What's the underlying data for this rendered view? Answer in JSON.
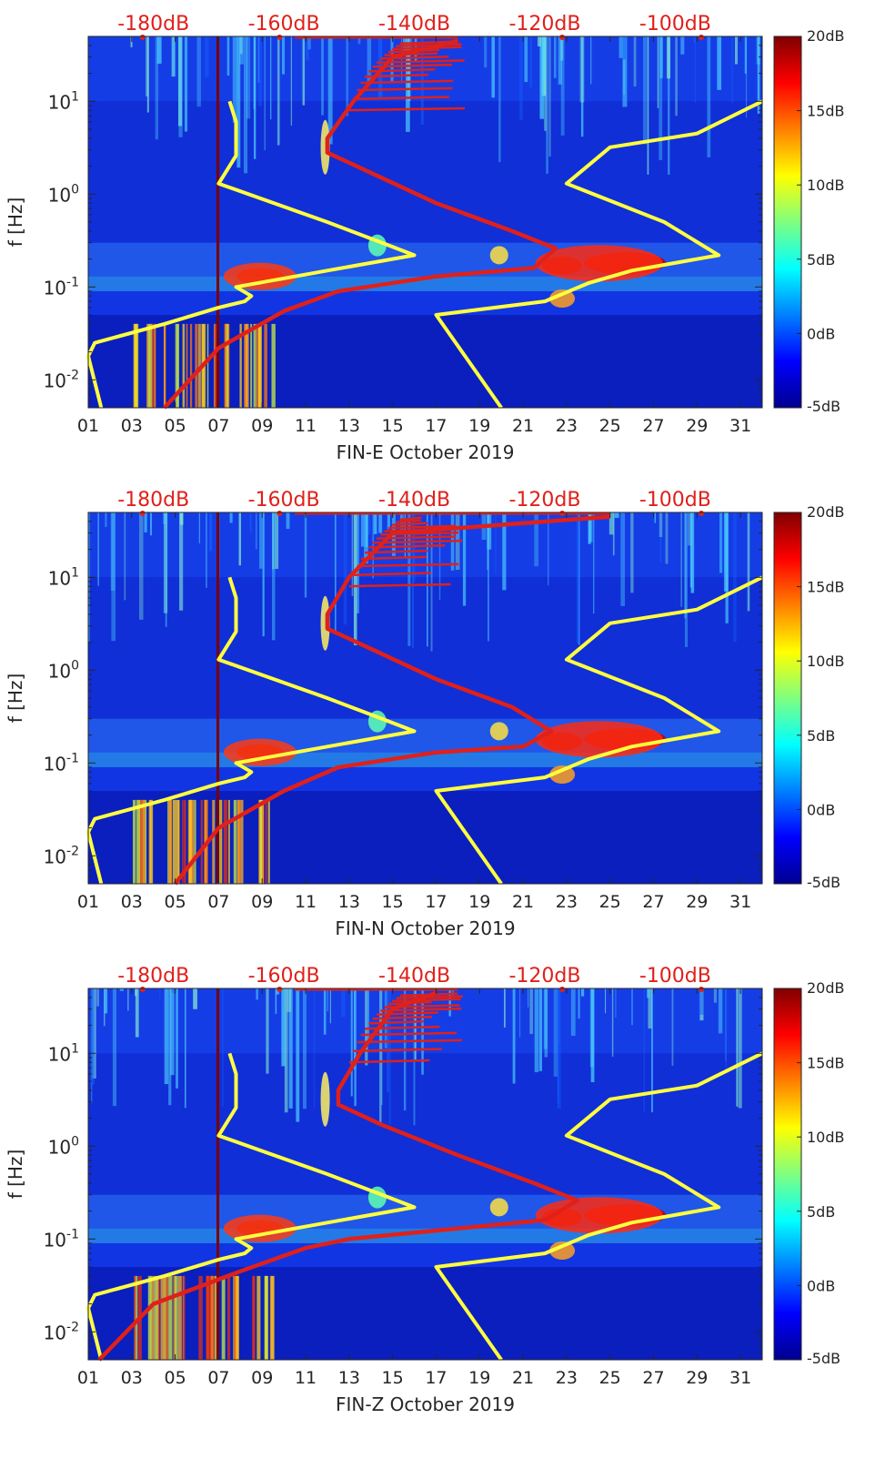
{
  "chart_data": [
    {
      "type": "heatmap",
      "title": "",
      "xlabel": "FIN-E October 2019",
      "ylabel": "f [Hz]",
      "x_ticks": [
        "01",
        "03",
        "05",
        "07",
        "09",
        "11",
        "13",
        "15",
        "17",
        "19",
        "21",
        "23",
        "25",
        "27",
        "29",
        "31"
      ],
      "x_tick_values": [
        1,
        3,
        5,
        7,
        9,
        11,
        13,
        15,
        17,
        19,
        21,
        23,
        25,
        27,
        29,
        31
      ],
      "xlim": [
        1,
        32
      ],
      "y_ticks": [
        "10^-2",
        "10^-1",
        "10^0",
        "10^1"
      ],
      "y_tick_values": [
        0.01,
        0.1,
        1,
        10
      ],
      "ylim": [
        0.005,
        50
      ],
      "yscale": "log",
      "top_axis_labels": [
        "-180dB",
        "-160dB",
        "-140dB",
        "-120dB",
        "-100dB"
      ],
      "top_axis_positions": [
        4,
        10,
        16,
        22,
        28
      ],
      "colorbar": {
        "labels": [
          "20dB",
          "15dB",
          "10dB",
          "5dB",
          "0dB",
          "-5dB"
        ],
        "range": [
          -5,
          20
        ]
      },
      "series": [
        {
          "name": "noise model (yellow)",
          "color": "#ffff40",
          "points": [
            [
              7.5,
              10
            ],
            [
              7.8,
              6
            ],
            [
              7.8,
              2.6
            ],
            [
              7,
              1.3
            ],
            [
              12,
              0.5
            ],
            [
              14.5,
              0.3
            ],
            [
              16,
              0.22
            ],
            [
              12,
              0.15
            ],
            [
              7.8,
              0.1
            ],
            [
              8.5,
              0.08
            ],
            [
              8.2,
              0.07
            ],
            [
              7,
              0.06
            ],
            [
              4.5,
              0.04
            ],
            [
              1.3,
              0.025
            ],
            [
              1,
              0.018
            ],
            [
              1.6,
              0.005
            ]
          ]
        },
        {
          "name": "noise model (yellow) 2",
          "color": "#ffff40",
          "points": [
            [
              32,
              10
            ],
            [
              29,
              4.5
            ],
            [
              25,
              3.2
            ],
            [
              23,
              1.3
            ],
            [
              27.5,
              0.5
            ],
            [
              30,
              0.22
            ],
            [
              26,
              0.15
            ],
            [
              24,
              0.11
            ],
            [
              22,
              0.07
            ],
            [
              17,
              0.05
            ],
            [
              20,
              0.005
            ]
          ]
        },
        {
          "name": "PSD level curve (red)",
          "color": "#e0201a",
          "points": [
            [
              18,
              45
            ],
            [
              15,
              30
            ],
            [
              13.2,
              10
            ],
            [
              12,
              4
            ],
            [
              12,
              2.8
            ],
            [
              14,
              1.7
            ],
            [
              17,
              0.8
            ],
            [
              20.5,
              0.4
            ],
            [
              22.5,
              0.26
            ],
            [
              21.5,
              0.16
            ],
            [
              17,
              0.13
            ],
            [
              12.5,
              0.09
            ],
            [
              10,
              0.055
            ],
            [
              7,
              0.022
            ],
            [
              4.5,
              0.005
            ]
          ]
        }
      ]
    },
    {
      "type": "heatmap",
      "title": "",
      "xlabel": "FIN-N October 2019",
      "ylabel": "f [Hz]",
      "x_ticks": [
        "01",
        "03",
        "05",
        "07",
        "09",
        "11",
        "13",
        "15",
        "17",
        "19",
        "21",
        "23",
        "25",
        "27",
        "29",
        "31"
      ],
      "x_tick_values": [
        1,
        3,
        5,
        7,
        9,
        11,
        13,
        15,
        17,
        19,
        21,
        23,
        25,
        27,
        29,
        31
      ],
      "xlim": [
        1,
        32
      ],
      "y_ticks": [
        "10^-2",
        "10^-1",
        "10^0",
        "10^1"
      ],
      "y_tick_values": [
        0.01,
        0.1,
        1,
        10
      ],
      "ylim": [
        0.005,
        50
      ],
      "yscale": "log",
      "top_axis_labels": [
        "-180dB",
        "-160dB",
        "-140dB",
        "-120dB",
        "-100dB"
      ],
      "top_axis_positions": [
        4,
        10,
        16,
        22,
        28
      ],
      "colorbar": {
        "labels": [
          "20dB",
          "15dB",
          "10dB",
          "5dB",
          "0dB",
          "-5dB"
        ],
        "range": [
          -5,
          20
        ]
      },
      "series": [
        {
          "name": "noise model (yellow)",
          "color": "#ffff40",
          "points": [
            [
              7.5,
              10
            ],
            [
              7.8,
              6
            ],
            [
              7.8,
              2.6
            ],
            [
              7,
              1.3
            ],
            [
              12,
              0.5
            ],
            [
              14.5,
              0.3
            ],
            [
              16,
              0.22
            ],
            [
              12,
              0.15
            ],
            [
              7.8,
              0.1
            ],
            [
              8.5,
              0.08
            ],
            [
              8.2,
              0.07
            ],
            [
              7,
              0.06
            ],
            [
              4.5,
              0.04
            ],
            [
              1.3,
              0.025
            ],
            [
              1,
              0.018
            ],
            [
              1.6,
              0.005
            ]
          ]
        },
        {
          "name": "noise model (yellow) 2",
          "color": "#ffff40",
          "points": [
            [
              32,
              10
            ],
            [
              29,
              4.5
            ],
            [
              25,
              3.2
            ],
            [
              23,
              1.3
            ],
            [
              27.5,
              0.5
            ],
            [
              30,
              0.22
            ],
            [
              26,
              0.15
            ],
            [
              24,
              0.11
            ],
            [
              22,
              0.07
            ],
            [
              17,
              0.05
            ],
            [
              20,
              0.005
            ]
          ]
        },
        {
          "name": "PSD level curve (red)",
          "color": "#e0201a",
          "points": [
            [
              25,
              45
            ],
            [
              15,
              30
            ],
            [
              13,
              10
            ],
            [
              12,
              4
            ],
            [
              12,
              2.8
            ],
            [
              14,
              1.7
            ],
            [
              17,
              0.8
            ],
            [
              20.5,
              0.4
            ],
            [
              22.3,
              0.22
            ],
            [
              21,
              0.15
            ],
            [
              17,
              0.13
            ],
            [
              12.5,
              0.09
            ],
            [
              10,
              0.05
            ],
            [
              7,
              0.02
            ],
            [
              5,
              0.005
            ]
          ]
        }
      ]
    },
    {
      "type": "heatmap",
      "title": "",
      "xlabel": "FIN-Z October 2019",
      "ylabel": "f [Hz]",
      "x_ticks": [
        "01",
        "03",
        "05",
        "07",
        "09",
        "11",
        "13",
        "15",
        "17",
        "19",
        "21",
        "23",
        "25",
        "27",
        "29",
        "31"
      ],
      "x_tick_values": [
        1,
        3,
        5,
        7,
        9,
        11,
        13,
        15,
        17,
        19,
        21,
        23,
        25,
        27,
        29,
        31
      ],
      "xlim": [
        1,
        32
      ],
      "y_ticks": [
        "10^-2",
        "10^-1",
        "10^0",
        "10^1"
      ],
      "y_tick_values": [
        0.01,
        0.1,
        1,
        10
      ],
      "ylim": [
        0.005,
        50
      ],
      "yscale": "log",
      "top_axis_labels": [
        "-180dB",
        "-160dB",
        "-140dB",
        "-120dB",
        "-100dB"
      ],
      "top_axis_positions": [
        4,
        10,
        16,
        22,
        28
      ],
      "colorbar": {
        "labels": [
          "20dB",
          "15dB",
          "10dB",
          "5dB",
          "0dB",
          "-5dB"
        ],
        "range": [
          -5,
          20
        ]
      },
      "series": [
        {
          "name": "noise model (yellow)",
          "color": "#ffff40",
          "points": [
            [
              7.5,
              10
            ],
            [
              7.8,
              6
            ],
            [
              7.8,
              2.6
            ],
            [
              7,
              1.3
            ],
            [
              12,
              0.5
            ],
            [
              14.5,
              0.3
            ],
            [
              16,
              0.22
            ],
            [
              12,
              0.15
            ],
            [
              7.8,
              0.1
            ],
            [
              8.5,
              0.08
            ],
            [
              8.2,
              0.07
            ],
            [
              7,
              0.06
            ],
            [
              4.5,
              0.04
            ],
            [
              1.3,
              0.025
            ],
            [
              1,
              0.018
            ],
            [
              1.6,
              0.005
            ]
          ]
        },
        {
          "name": "noise model (yellow) 2",
          "color": "#ffff40",
          "points": [
            [
              32,
              10
            ],
            [
              29,
              4.5
            ],
            [
              25,
              3.2
            ],
            [
              23,
              1.3
            ],
            [
              27.5,
              0.5
            ],
            [
              30,
              0.22
            ],
            [
              26,
              0.15
            ],
            [
              24,
              0.11
            ],
            [
              22,
              0.07
            ],
            [
              17,
              0.05
            ],
            [
              20,
              0.005
            ]
          ]
        },
        {
          "name": "PSD level curve (red)",
          "color": "#e0201a",
          "points": [
            [
              17,
              45
            ],
            [
              15,
              30
            ],
            [
              13.5,
              10
            ],
            [
              12.5,
              4
            ],
            [
              12.5,
              2.8
            ],
            [
              14.5,
              1.7
            ],
            [
              18,
              0.8
            ],
            [
              21.5,
              0.4
            ],
            [
              23.5,
              0.26
            ],
            [
              22,
              0.16
            ],
            [
              18,
              0.13
            ],
            [
              13,
              0.1
            ],
            [
              11,
              0.08
            ],
            [
              8,
              0.045
            ],
            [
              4,
              0.02
            ],
            [
              1.5,
              0.005
            ]
          ]
        }
      ]
    }
  ]
}
